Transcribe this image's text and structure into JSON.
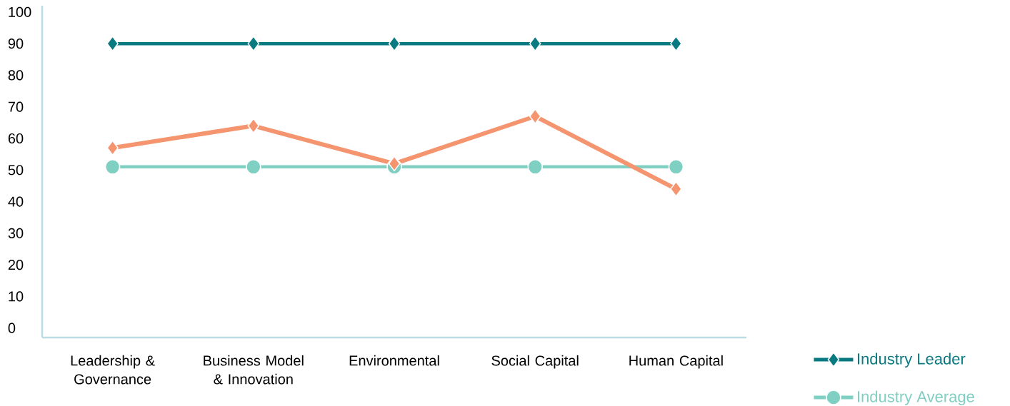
{
  "chart_data": {
    "type": "line",
    "categories": [
      "Leadership & Governance",
      "Business Model & Innovation",
      "Environmental",
      "Social Capital",
      "Human Capital"
    ],
    "series": [
      {
        "name": "Industry Leader",
        "color": "#0a7a82",
        "marker": "diamond",
        "values": [
          90,
          90,
          90,
          90,
          90
        ]
      },
      {
        "name": "Industry Average",
        "color": "#7fcfc2",
        "marker": "circle",
        "values": [
          51,
          51,
          51,
          51,
          51
        ]
      },
      {
        "color": "#f4956f",
        "marker": "diamond",
        "values": [
          57,
          64,
          52,
          67,
          44
        ]
      }
    ],
    "ylim": [
      -3,
      102
    ],
    "yticks": [
      0,
      10,
      20,
      30,
      40,
      50,
      60,
      70,
      80,
      90,
      100
    ],
    "grid": false,
    "legend": "bottom right",
    "line_style": "solid"
  }
}
